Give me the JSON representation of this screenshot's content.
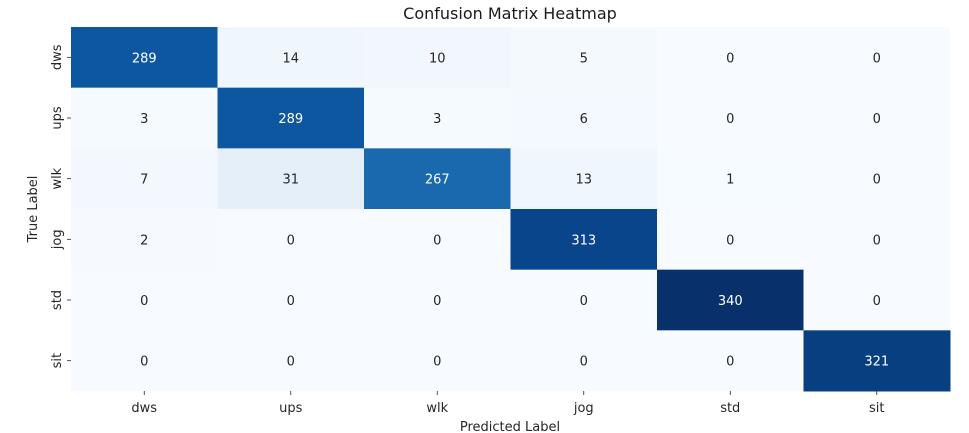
{
  "chart_data": {
    "type": "heatmap",
    "title": "Confusion Matrix Heatmap",
    "xlabel": "Predicted Label",
    "ylabel": "True Label",
    "x_categories": [
      "dws",
      "ups",
      "wlk",
      "jog",
      "std",
      "sit"
    ],
    "y_categories": [
      "dws",
      "ups",
      "wlk",
      "jog",
      "std",
      "sit"
    ],
    "values": [
      [
        289,
        14,
        10,
        5,
        0,
        0
      ],
      [
        3,
        289,
        3,
        6,
        0,
        0
      ],
      [
        7,
        31,
        267,
        13,
        1,
        0
      ],
      [
        2,
        0,
        0,
        313,
        0,
        0
      ],
      [
        0,
        0,
        0,
        0,
        340,
        0
      ],
      [
        0,
        0,
        0,
        0,
        0,
        321
      ]
    ],
    "colormap": "Blues",
    "value_range": [
      0,
      340
    ],
    "colorbar": false
  }
}
